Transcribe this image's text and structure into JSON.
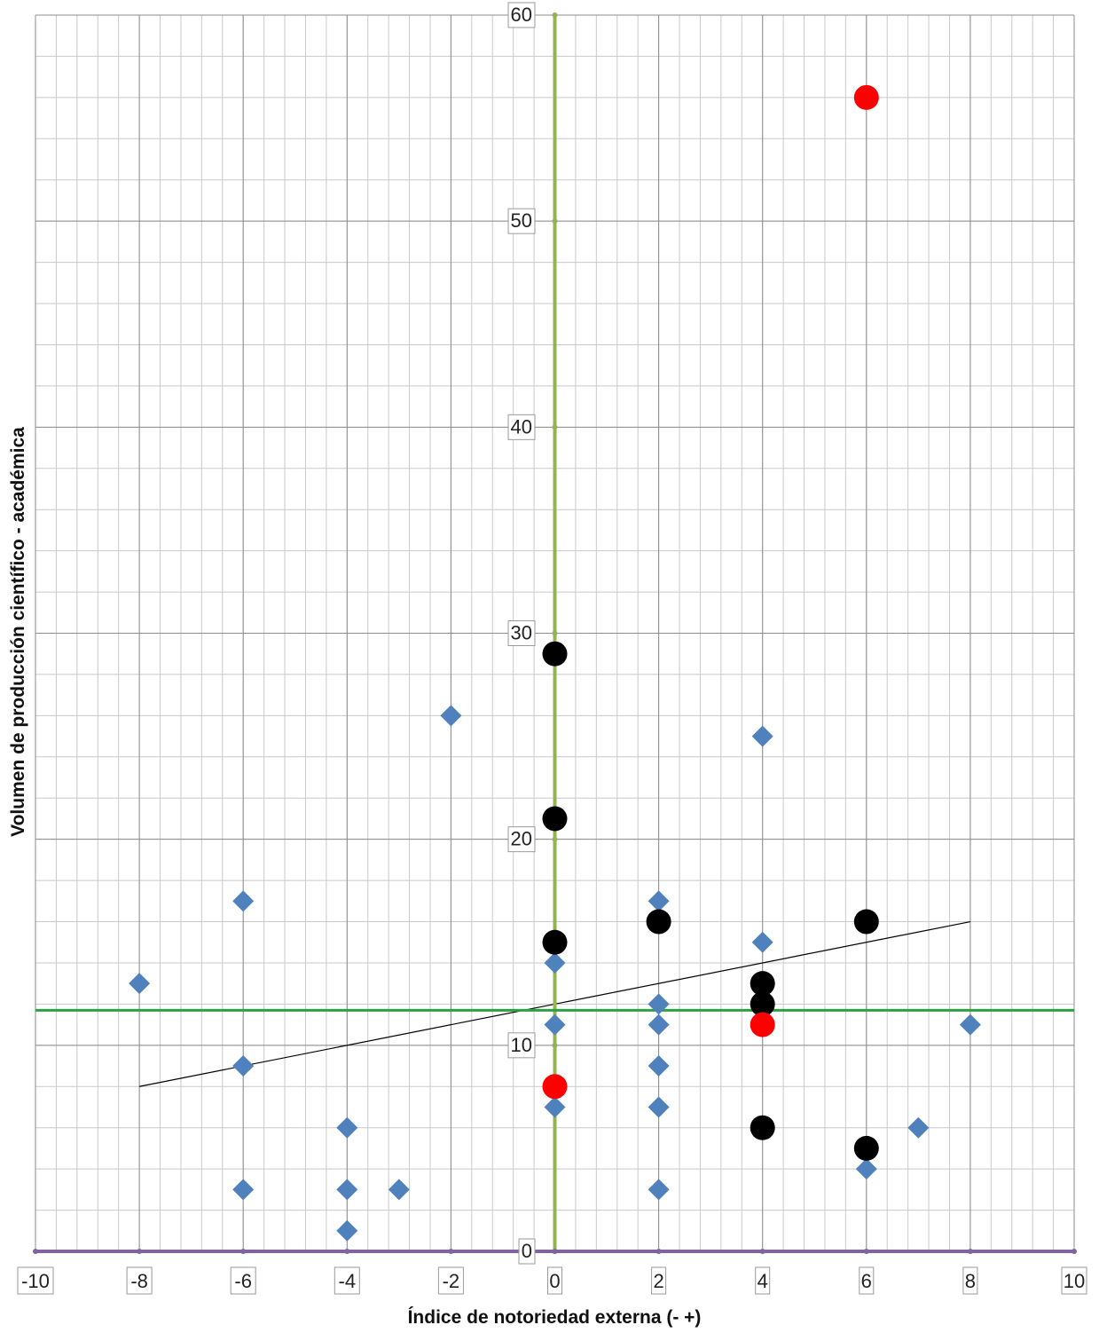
{
  "chart_data": {
    "type": "scatter",
    "title": "",
    "xlabel": "Índice de notoriedad externa (- +)",
    "ylabel": "Volumen de producción científico - académica",
    "xlim": [
      -10,
      10
    ],
    "ylim": [
      0,
      60
    ],
    "x_ticks": [
      -10,
      -8,
      -6,
      -4,
      -2,
      0,
      2,
      4,
      6,
      8,
      10
    ],
    "y_ticks": [
      0,
      10,
      20,
      30,
      40,
      50,
      60
    ],
    "grid": true,
    "minor_grid": {
      "x_step": 0.4,
      "y_step": 2
    },
    "series": [
      {
        "marker": "diamond",
        "color": "#4F81BD",
        "points": [
          [
            -8,
            13
          ],
          [
            -6,
            17
          ],
          [
            -6,
            9
          ],
          [
            -6,
            3
          ],
          [
            -4,
            6
          ],
          [
            -4,
            3
          ],
          [
            -4,
            1
          ],
          [
            -3,
            3
          ],
          [
            -2,
            26
          ],
          [
            0,
            14
          ],
          [
            0,
            11
          ],
          [
            0,
            7
          ],
          [
            2,
            17
          ],
          [
            2,
            12
          ],
          [
            2,
            11
          ],
          [
            2,
            9
          ],
          [
            2,
            7
          ],
          [
            2,
            3
          ],
          [
            4,
            25
          ],
          [
            4,
            15
          ],
          [
            6,
            4
          ],
          [
            7,
            6
          ],
          [
            8,
            11
          ]
        ]
      },
      {
        "marker": "circle",
        "color": "#000000",
        "points": [
          [
            0,
            29
          ],
          [
            0,
            21
          ],
          [
            0,
            15
          ],
          [
            2,
            16
          ],
          [
            4,
            13
          ],
          [
            4,
            12
          ],
          [
            4,
            6
          ],
          [
            6,
            16
          ],
          [
            6,
            5
          ]
        ]
      },
      {
        "marker": "circle",
        "color": "#FF0000",
        "points": [
          [
            6,
            56
          ],
          [
            4,
            11
          ],
          [
            0,
            8
          ]
        ]
      }
    ],
    "trendline": {
      "color": "#000000",
      "from": [
        -8,
        8
      ],
      "to": [
        8,
        16
      ]
    },
    "reference_lines": {
      "vertical": {
        "x": 0,
        "color": "#92B550"
      },
      "horizontal": {
        "y": 11.7,
        "color": "#2EA043"
      },
      "baseline": {
        "y": 0,
        "color": "#8064A2"
      }
    }
  }
}
